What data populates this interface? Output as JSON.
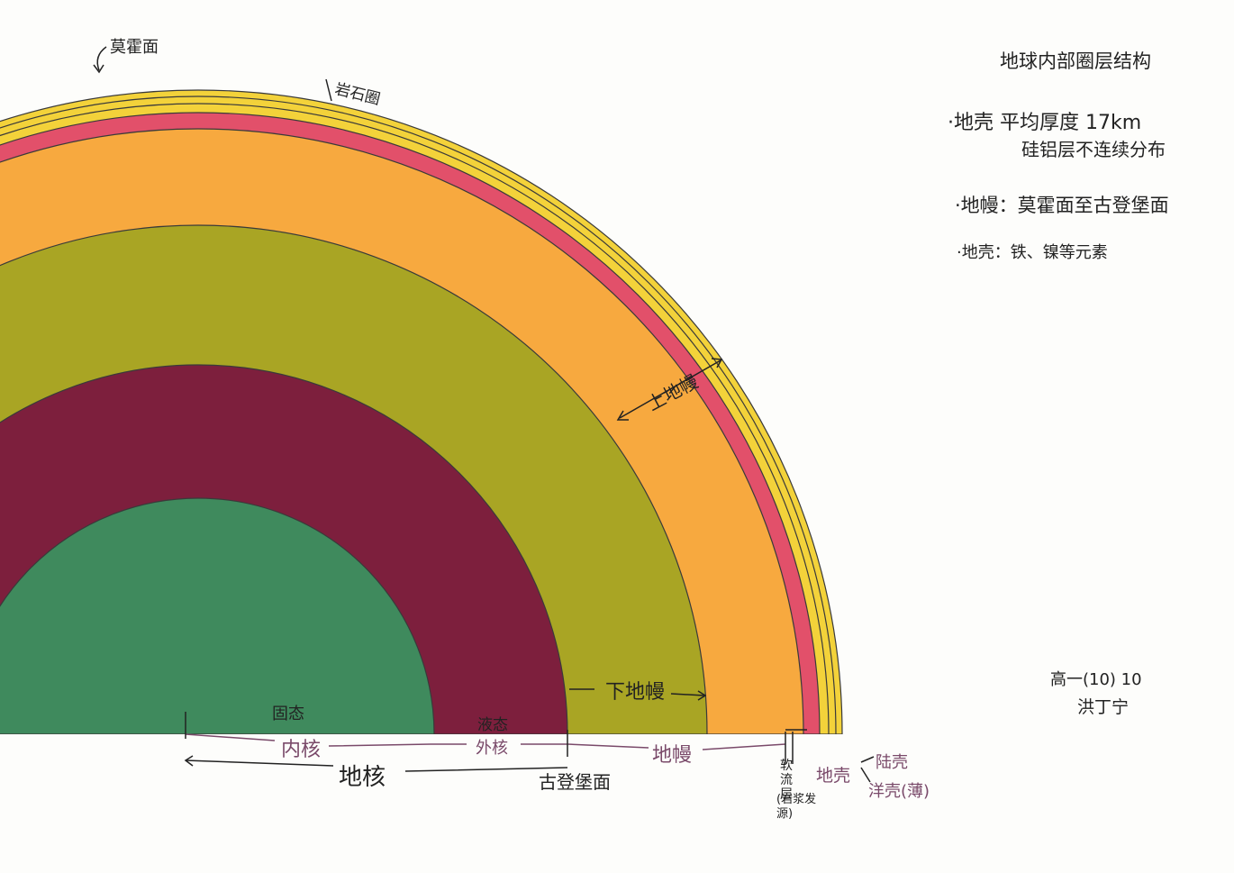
{
  "title": "地球内部圈层结构",
  "notes": [
    "·地壳 平均厚度 17km",
    "硅铝层不连续分布",
    "·地幔：莫霍面至古登堡面",
    "·地壳：铁、镍等元素"
  ],
  "author": {
    "class": "高一(10) 10",
    "name": "洪丁宁"
  },
  "labels": {
    "moho": "莫霍面",
    "lithosphere": "岩石圈",
    "upper_mantle": "上地幔",
    "lower_mantle": "下地幔",
    "solid": "固态",
    "liquid": "液态",
    "inner_core": "内核",
    "outer_core": "外核",
    "core": "地核",
    "gutenberg": "古登堡面",
    "mantle": "地幔",
    "asthenosphere": "软流层",
    "magma_source": "(岩浆发源)",
    "crust": "地壳",
    "continental_crust": "陆壳",
    "oceanic_crust": "洋壳(薄)"
  },
  "colors": {
    "inner_core": "#3f8a5d",
    "outer_core": "#7d1f3d",
    "lower_mantle": "#a9a524",
    "upper_mantle": "#f7a93f",
    "asthenosphere": "#e2506a",
    "crust": "#f3d23a",
    "outline": "#3a3a3a"
  }
}
